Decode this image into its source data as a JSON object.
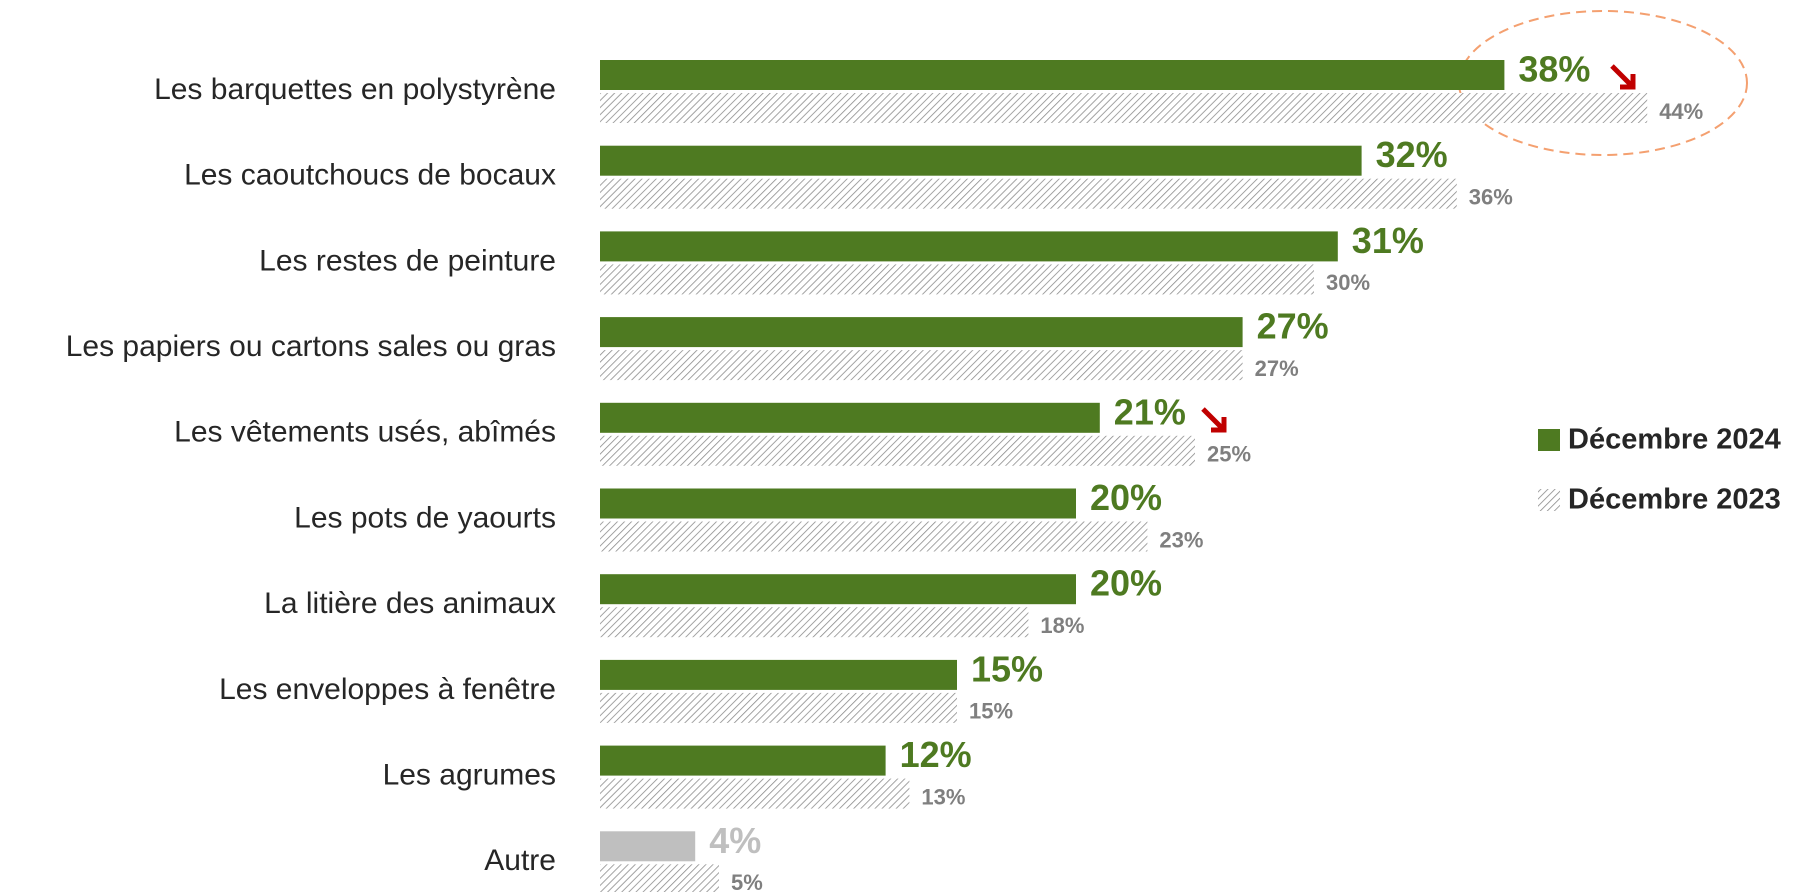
{
  "chart_data": {
    "type": "bar",
    "orientation": "horizontal",
    "categories": [
      "Les barquettes en polystyrène",
      "Les caoutchoucs de bocaux",
      "Les restes de peinture",
      "Les papiers ou cartons sales ou gras",
      "Les vêtements usés, abîmés",
      "Les pots de yaourts",
      "La litière des animaux",
      "Les enveloppes à fenêtre",
      "Les agrumes",
      "Autre"
    ],
    "series": [
      {
        "name": "Décembre 2024",
        "color": "#4e7a21",
        "colors": [
          "#4e7a21",
          "#4e7a21",
          "#4e7a21",
          "#4e7a21",
          "#4e7a21",
          "#4e7a21",
          "#4e7a21",
          "#4e7a21",
          "#4e7a21",
          "#bfbfbf"
        ],
        "values": [
          38,
          32,
          31,
          27,
          21,
          20,
          20,
          15,
          12,
          4
        ],
        "value_labels": [
          "38%",
          "32%",
          "31%",
          "27%",
          "21%",
          "20%",
          "20%",
          "15%",
          "12%",
          "4%"
        ]
      },
      {
        "name": "Décembre 2023",
        "color": "#8c8c8c",
        "pattern": "hatched",
        "values": [
          44,
          36,
          30,
          27,
          25,
          23,
          18,
          15,
          13,
          5
        ],
        "value_labels": [
          "44%",
          "36%",
          "30%",
          "27%",
          "25%",
          "23%",
          "18%",
          "15%",
          "13%",
          "5%"
        ]
      }
    ],
    "xlim": [
      0,
      50
    ],
    "legend": "right"
  }
}
